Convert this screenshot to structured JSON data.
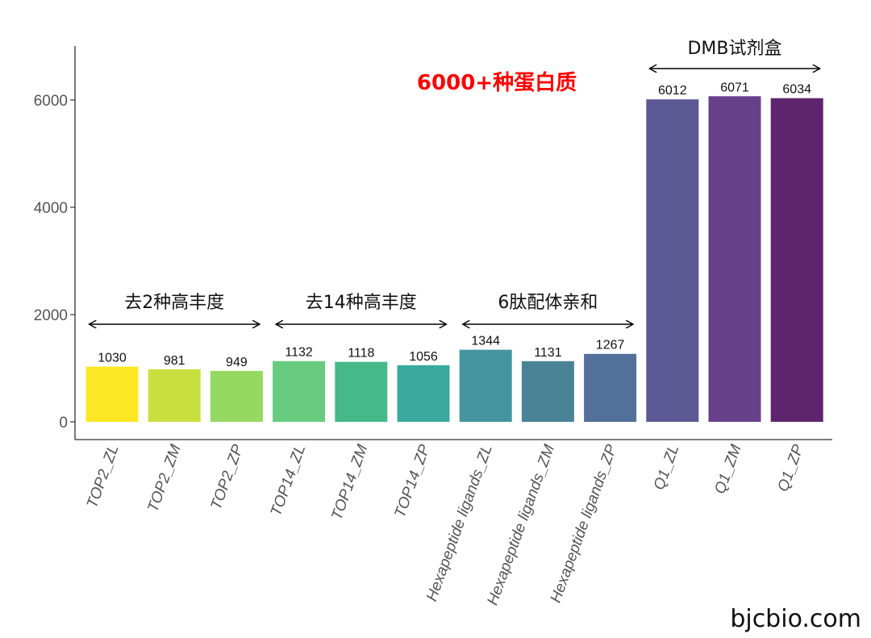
{
  "chart_data": {
    "type": "bar",
    "categories": [
      "TOP2_ZL",
      "TOP2_ZM",
      "TOP2_ZP",
      "TOP14_ZL",
      "TOP14_ZM",
      "TOP14_ZP",
      "Hexapeptide ligands_ZL",
      "Hexapeptide ligands_ZM",
      "Hexapeptide ligands_ZP",
      "Q1_ZL",
      "Q1_ZM",
      "Q1_ZP"
    ],
    "values": [
      1030,
      981,
      949,
      1132,
      1118,
      1056,
      1344,
      1131,
      1267,
      6012,
      6071,
      6034
    ],
    "colors": [
      "#FDE725",
      "#C8E03F",
      "#95D862",
      "#67CC7F",
      "#45B989",
      "#3BA99D",
      "#44959F",
      "#4A8396",
      "#52709A",
      "#5C5894",
      "#66418A",
      "#5E246D"
    ],
    "ylim": [
      0,
      7000
    ],
    "yticks": [
      0,
      2000,
      4000,
      6000
    ],
    "xlabel": "",
    "ylabel": "",
    "grid": false,
    "groups": [
      {
        "label": "去2种高丰度",
        "from": 0,
        "to": 2
      },
      {
        "label": "去14种高丰度",
        "from": 3,
        "to": 5
      },
      {
        "label": "6肽配体亲和",
        "from": 6,
        "to": 8
      },
      {
        "label": "DMB试剂盒",
        "from": 9,
        "to": 11
      }
    ],
    "highlight_text": "6000+种蛋白质",
    "highlight_color": "#FF0000"
  },
  "watermark": "bjcbio.com"
}
